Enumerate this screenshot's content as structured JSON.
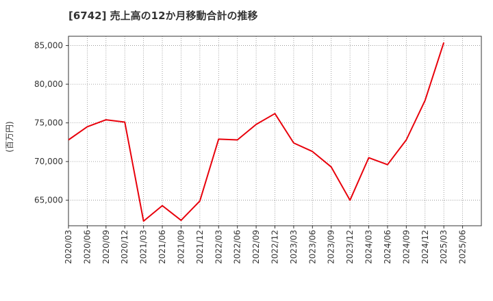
{
  "chart_data": {
    "type": "line",
    "title": "[6742]  売上高の12か月移動合計の推移",
    "ylabel": "(百万円)",
    "xlabel": "",
    "ylim": [
      61700,
      86200
    ],
    "yticks": [
      65000,
      70000,
      75000,
      80000,
      85000
    ],
    "ytick_labels": [
      "65,000",
      "70,000",
      "75,000",
      "80,000",
      "85,000"
    ],
    "categories": [
      "2020/03",
      "2020/06",
      "2020/09",
      "2020/12",
      "2021/03",
      "2021/06",
      "2021/09",
      "2021/12",
      "2022/03",
      "2022/06",
      "2022/09",
      "2022/12",
      "2023/03",
      "2023/06",
      "2023/09",
      "2023/12",
      "2024/03",
      "2024/06",
      "2024/09",
      "2024/12",
      "2025/03",
      "2025/06"
    ],
    "grid": true,
    "series": [
      {
        "name": "売上高",
        "color": "#e8000b",
        "values": [
          72800,
          74500,
          75400,
          75100,
          62300,
          64300,
          62400,
          64900,
          72900,
          72800,
          74800,
          76200,
          72400,
          71300,
          69300,
          65000,
          70500,
          69600,
          72800,
          77900,
          85400,
          null
        ]
      }
    ]
  }
}
